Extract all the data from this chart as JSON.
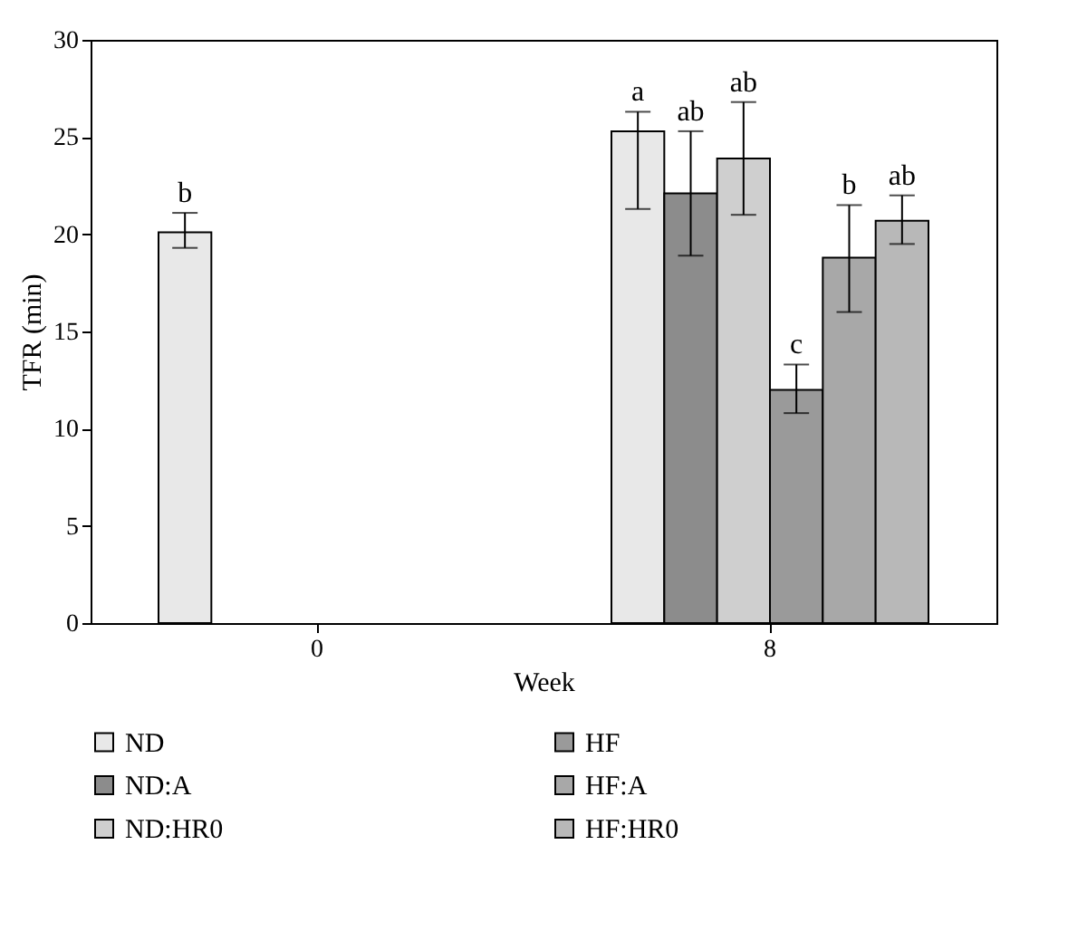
{
  "chart_data": {
    "type": "bar",
    "xlabel": "Week",
    "ylabel": "TFR (min)",
    "categories": [
      "0",
      "8"
    ],
    "series": [
      {
        "name": "ND",
        "color": "#e8e8e8",
        "values": [
          20.1,
          25.3
        ],
        "errors": [
          [
            19.3,
            21.1
          ],
          [
            21.3,
            26.3
          ]
        ],
        "value_labels": [
          "b",
          "a"
        ]
      },
      {
        "name": "ND:A",
        "color": "#8c8c8c",
        "values": [
          null,
          22.1
        ],
        "errors": [
          null,
          [
            18.9,
            25.3
          ]
        ],
        "value_labels": [
          null,
          "ab"
        ]
      },
      {
        "name": "ND:HR0",
        "color": "#cfcfcf",
        "values": [
          null,
          23.9
        ],
        "errors": [
          null,
          [
            21.0,
            26.8
          ]
        ],
        "value_labels": [
          null,
          "ab"
        ]
      },
      {
        "name": "HF",
        "color": "#9a9a9a",
        "values": [
          null,
          12.0
        ],
        "errors": [
          null,
          [
            10.8,
            13.3
          ]
        ],
        "value_labels": [
          null,
          "c"
        ]
      },
      {
        "name": "HF:A",
        "color": "#a8a8a8",
        "values": [
          null,
          18.8
        ],
        "errors": [
          null,
          [
            16.0,
            21.5
          ]
        ],
        "value_labels": [
          null,
          "b"
        ]
      },
      {
        "name": "HF:HR0",
        "color": "#b8b8b8",
        "values": [
          null,
          20.7
        ],
        "errors": [
          null,
          [
            19.5,
            22.0
          ]
        ],
        "value_labels": [
          null,
          "ab"
        ]
      }
    ],
    "ylim": [
      0,
      30
    ],
    "yticks": [
      0,
      5,
      10,
      15,
      20,
      25,
      30
    ],
    "grid": false,
    "legend": "bottom"
  }
}
